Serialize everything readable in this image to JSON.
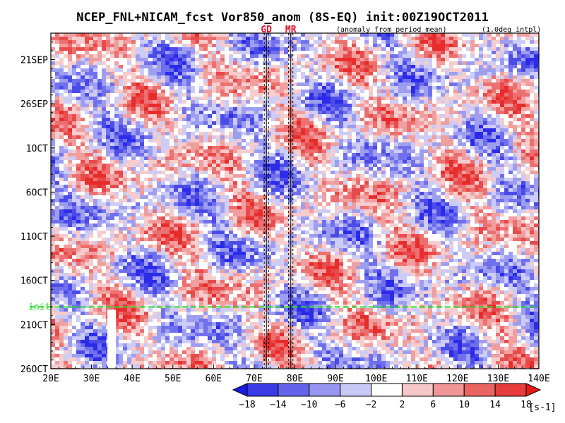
{
  "chart_data": {
    "type": "heatmap",
    "title": "NCEP_FNL+NICAM_fcst Vor850_anom (8S-EQ) init:00Z19OCT2011",
    "note_left": "(anomaly from period mean)",
    "note_right": "(1.0deg intpl)",
    "x_ticks": [
      "20E",
      "30E",
      "40E",
      "50E",
      "60E",
      "70E",
      "80E",
      "90E",
      "100E",
      "110E",
      "120E",
      "130E",
      "140E"
    ],
    "x_range": [
      20,
      140
    ],
    "y_ticks": [
      "21SEP",
      "26SEP",
      "1OCT",
      "6OCT",
      "11OCT",
      "16OCT",
      "21OCT",
      "26OCT"
    ],
    "y_range": [
      "2011-09-18",
      "2011-10-26"
    ],
    "reference_lines": [
      {
        "label": "GD",
        "lon": 73,
        "color": "#e0102a"
      },
      {
        "label": "MR",
        "lon": 79,
        "color": "#e0102a"
      }
    ],
    "init_line": {
      "label": "init",
      "date": "2011-10-19",
      "color": "#22dd22"
    },
    "colorbar": {
      "levels": [
        "−18",
        "−14",
        "−10",
        "−6",
        "−2",
        "2",
        "6",
        "10",
        "14",
        "18"
      ],
      "colors": [
        "#1a1ae6",
        "#3c3ce6",
        "#6464eb",
        "#9696f0",
        "#c8c8f5",
        "#ffffff",
        "#f5c8c8",
        "#f09696",
        "#eb6464",
        "#e63c3c",
        "#e61a1a"
      ],
      "unit": "[s-1]"
    }
  }
}
